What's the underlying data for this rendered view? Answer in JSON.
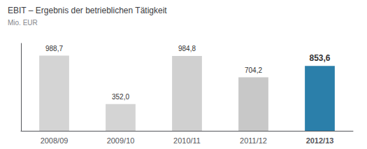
{
  "chart_data": {
    "type": "bar",
    "title": "EBIT – Ergebnis der betrieblichen Tätigkeit",
    "subtitle": "Mio. EUR",
    "categories": [
      "2008/09",
      "2009/10",
      "2010/11",
      "2011/12",
      "2012/13"
    ],
    "values": [
      988.7,
      352.0,
      984.8,
      704.2,
      853.6
    ],
    "value_labels": [
      "988,7",
      "352,0",
      "984,8",
      "704,2",
      "853,6"
    ],
    "colors": [
      "#d4d4d4",
      "#d4d4d4",
      "#d0d0d0",
      "#c8c8c8",
      "#2b7faa"
    ],
    "ylim": [
      0,
      1150
    ],
    "data_labels": true,
    "tick_labels": "x",
    "grid": false
  }
}
